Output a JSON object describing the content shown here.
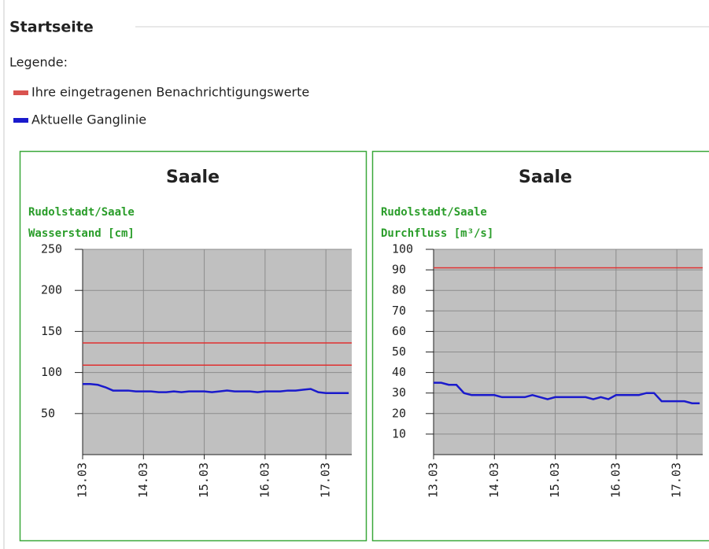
{
  "page": {
    "title": "Startseite",
    "legend_label": "Legende:",
    "legend": [
      {
        "name": "Ihre eingetragenen Benachrichtigungswerte",
        "color": "#d9534f"
      },
      {
        "name": "Aktuelle Ganglinie",
        "color": "#1a1acc"
      }
    ]
  },
  "chart_data": [
    {
      "type": "line",
      "title": "Saale",
      "station": "Rudolstadt/Saale",
      "subtitle": "Wasserstand [cm]",
      "categories": [
        "13.03",
        null,
        null,
        null,
        null,
        null,
        null,
        null,
        "14.03",
        null,
        null,
        null,
        null,
        null,
        null,
        null,
        "15.03",
        null,
        null,
        null,
        null,
        null,
        null,
        null,
        "16.03",
        null,
        null,
        null,
        null,
        null,
        null,
        null,
        "17.03",
        null,
        null,
        null
      ],
      "series": [
        {
          "color": "#1a1acc",
          "values": [
            86,
            86,
            85,
            82,
            78,
            78,
            78,
            77,
            77,
            77,
            76,
            76,
            77,
            76,
            77,
            77,
            77,
            76,
            77,
            78,
            77,
            77,
            77,
            76,
            77,
            77,
            77,
            78,
            78,
            79,
            80,
            76,
            75,
            75,
            75,
            75
          ]
        }
      ],
      "thresholds": [
        136,
        109
      ],
      "threshold_color": "#e03030",
      "ylim": [
        0,
        250
      ],
      "yticks": [
        50,
        100,
        150,
        200,
        250
      ],
      "grid": true,
      "plot_color": "#c0c0c0"
    },
    {
      "type": "line",
      "title": "Saale",
      "station": "Rudolstadt/Saale",
      "subtitle": "Durchfluss [m³/s]",
      "categories": [
        "13.03",
        null,
        null,
        null,
        null,
        null,
        null,
        null,
        "14.03",
        null,
        null,
        null,
        null,
        null,
        null,
        null,
        "15.03",
        null,
        null,
        null,
        null,
        null,
        null,
        null,
        "16.03",
        null,
        null,
        null,
        null,
        null,
        null,
        null,
        "17.03",
        null,
        null,
        null
      ],
      "series": [
        {
          "color": "#1a1acc",
          "values": [
            35,
            35,
            34,
            34,
            30,
            29,
            29,
            29,
            29,
            28,
            28,
            28,
            28,
            29,
            28,
            27,
            28,
            28,
            28,
            28,
            28,
            27,
            28,
            27,
            29,
            29,
            29,
            29,
            30,
            30,
            26,
            26,
            26,
            26,
            25,
            25
          ]
        }
      ],
      "thresholds": [
        91
      ],
      "threshold_color": "#e03030",
      "ylim": [
        0,
        100
      ],
      "yticks": [
        10,
        20,
        30,
        40,
        50,
        60,
        70,
        80,
        90,
        100
      ],
      "grid": true,
      "plot_color": "#c0c0c0"
    }
  ]
}
